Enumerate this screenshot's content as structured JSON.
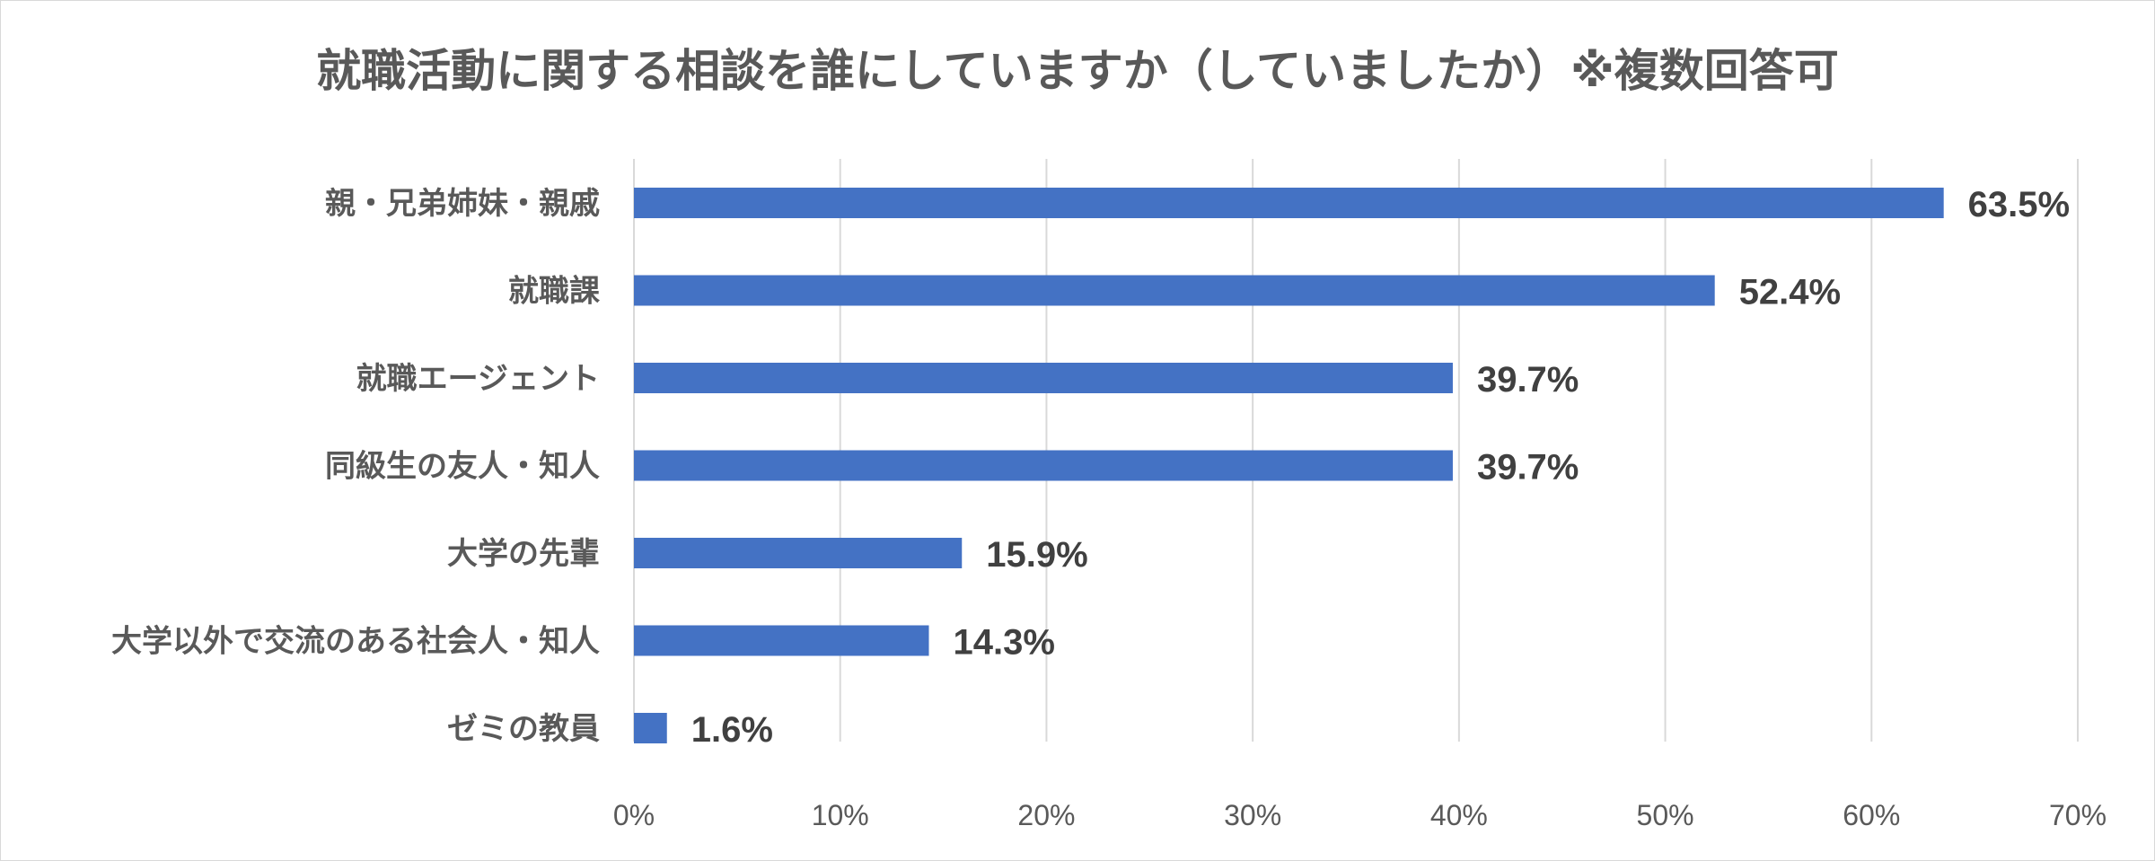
{
  "chart_data": {
    "type": "bar",
    "orientation": "horizontal",
    "title": "就職活動に関する相談を誰にしていますか（していましたか）※複数回答可",
    "categories": [
      "親・兄弟姉妹・親戚",
      "就職課",
      "就職エージェント",
      "同級生の友人・知人",
      "大学の先輩",
      "大学以外で交流のある社会人・知人",
      "ゼミの教員"
    ],
    "values": [
      63.5,
      52.4,
      39.7,
      39.7,
      15.9,
      14.3,
      1.6
    ],
    "data_labels": [
      "63.5%",
      "52.4%",
      "39.7%",
      "39.7%",
      "15.9%",
      "14.3%",
      "1.6%"
    ],
    "xlim": [
      0,
      70
    ],
    "x_ticks": [
      "0%",
      "10%",
      "20%",
      "30%",
      "40%",
      "50%",
      "60%",
      "70%"
    ],
    "grid": true,
    "legend": "none",
    "colors": {
      "bar": "#4472c4",
      "gridline": "#d9d9d9",
      "text": "#595959",
      "data_label": "#404040"
    }
  }
}
